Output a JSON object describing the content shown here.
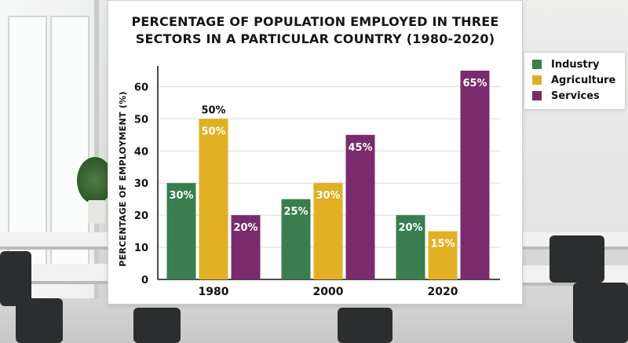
{
  "chart_data": {
    "type": "bar",
    "title": "PERCENTAGE OF POPULATION EMPLOYED IN THREE SECTORS IN A PARTICULAR COUNTRY (1980-2020)",
    "title_lines": [
      "PERCENTAGE OF POPULATION EMPLOYED IN THREE",
      "SECTORS IN A PARTICULAR COUNTRY (1980-2020)"
    ],
    "xlabel": "",
    "ylabel": "PERCENTAGE OF EMPLOYMENT (%)",
    "categories": [
      "1980",
      "2000",
      "2020"
    ],
    "ylim": [
      0,
      65
    ],
    "yticks": [
      0,
      10,
      20,
      30,
      40,
      50,
      60
    ],
    "grid": true,
    "legend_position": "right",
    "series": [
      {
        "name": "Industry",
        "color": "#3a7d4f",
        "values": [
          30,
          25,
          20
        ],
        "labels": [
          "30%",
          "25%",
          "20%"
        ]
      },
      {
        "name": "Agriculture",
        "color": "#e2b024",
        "values": [
          50,
          30,
          15
        ],
        "labels": [
          "50%",
          "30%",
          "15%"
        ]
      },
      {
        "name": "Services",
        "color": "#7b2a6e",
        "values": [
          20,
          45,
          65
        ],
        "labels": [
          "20%",
          "45%",
          "65%"
        ]
      }
    ],
    "annotations": [
      {
        "text": "50%",
        "category": "1980",
        "series": "Agriculture"
      }
    ]
  }
}
